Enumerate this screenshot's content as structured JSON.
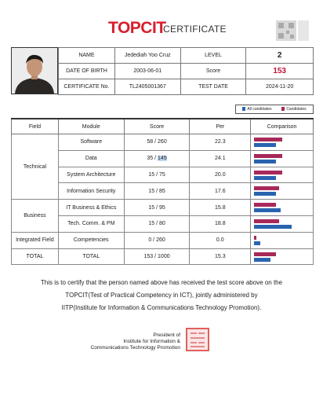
{
  "header": {
    "logo": "TOPCIT",
    "title": "CERTIFICATE"
  },
  "info": {
    "name_label": "NAME",
    "name_value": "Jedediah Yoo Cruz",
    "level_label": "LEVEL",
    "level_value": "2",
    "dob_label": "DATE OF BIRTH",
    "dob_value": "2003-06-01",
    "score_label": "Score",
    "score_value": "153",
    "cert_no_label": "CERTIFICATE No.",
    "cert_no_value": "TL2405001367",
    "test_date_label": "TEST DATE",
    "test_date_value": "2024-11-20"
  },
  "legend": {
    "all": "All candidates",
    "cand": "Candidates"
  },
  "colors": {
    "all": "#2a63b0",
    "cand": "#a8285a",
    "brand": "#d81e2c"
  },
  "table": {
    "headers": {
      "field": "Field",
      "module": "Module",
      "score": "Score",
      "per": "Per",
      "comparison": "Comparison"
    },
    "fields": {
      "technical": "Technical",
      "business": "Business",
      "integrated": "Integrated Field",
      "total": "TOTAL"
    },
    "rows": [
      {
        "module": "Software",
        "score": "58 / 260",
        "per": "22.3",
        "cand": 0.55,
        "all": 0.42
      },
      {
        "module": "Data",
        "score_a": "35 / ",
        "score_b": "145",
        "per": "24.1",
        "cand": 0.55,
        "all": 0.42
      },
      {
        "module": "System Architecture",
        "score": "15 / 75",
        "per": "20.0",
        "cand": 0.55,
        "all": 0.42
      },
      {
        "module": "Information Security",
        "score": "15 / 85",
        "per": "17.6",
        "cand": 0.48,
        "all": 0.42
      },
      {
        "module": "IT Business & Ethics",
        "score": "15 / 95",
        "per": "15.8",
        "cand": 0.42,
        "all": 0.52
      },
      {
        "module": "Tech. Comm. & PM",
        "score": "15 / 80",
        "per": "18.8",
        "cand": 0.48,
        "all": 0.72
      },
      {
        "module": "Competencies",
        "score": "0 / 260",
        "per": "0.0",
        "cand": 0.04,
        "all": 0.12
      },
      {
        "module": "TOTAL",
        "score": "153 / 1000",
        "per": "15.3",
        "cand": 0.42,
        "all": 0.32
      }
    ]
  },
  "certify": {
    "line1": "This is to certify that the person named above has received the test score above on the",
    "line2": "TOPCIT(Test of Practical Competency in ICT), jointly administered by",
    "line3": "IITP(Institute for Information & Communications Technology Promotion)."
  },
  "president": {
    "line1": "President of",
    "line2": "Institute for Information &",
    "line3": "Communications Technology Promotion"
  }
}
